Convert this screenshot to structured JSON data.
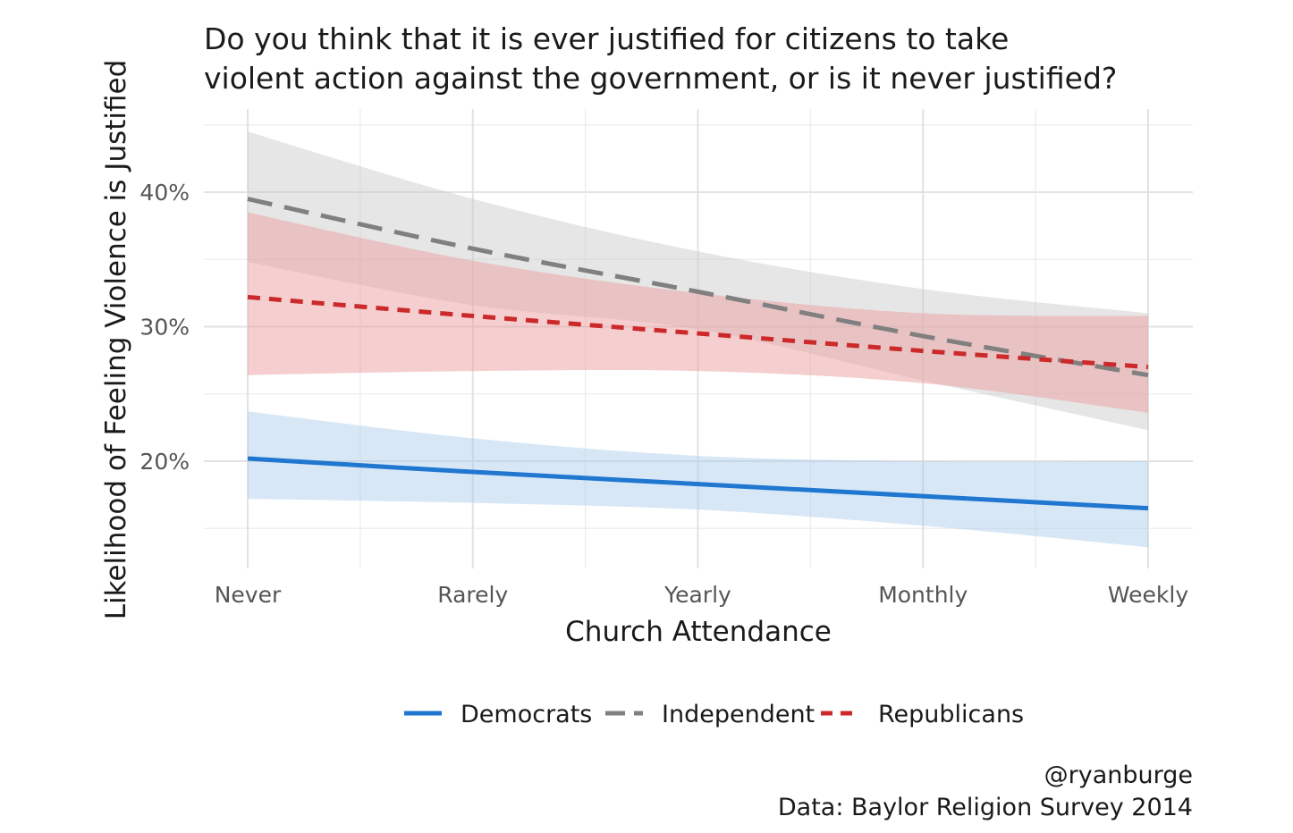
{
  "title_lines": [
    "Do you think that it is ever justified for citizens to take",
    "violent action against the government, or is it never justified?"
  ],
  "caption": {
    "handle": "@ryanburge",
    "source": "Data: Baylor Religion Survey 2014"
  },
  "chart_data": {
    "type": "line",
    "title": "Do you think that it is ever justified for citizens to take violent action against the government, or is it never justified?",
    "xlabel": "Church Attendance",
    "ylabel": "Likelihood of Feeling Violence is Justified",
    "categories": [
      "Never",
      "Rarely",
      "Yearly",
      "Monthly",
      "Weekly"
    ],
    "ylim": [
      13,
      46
    ],
    "yticks": [
      20,
      30,
      40
    ],
    "ytick_labels": [
      "20%",
      "30%",
      "40%"
    ],
    "grid": true,
    "legend_position": "bottom",
    "series": [
      {
        "name": "Democrats",
        "color": "#1f77d0",
        "band_color": "#a9c9ec",
        "linestyle": "solid",
        "values": [
          20.2,
          19.2,
          18.3,
          17.4,
          16.5
        ],
        "lower": [
          17.2,
          16.9,
          16.4,
          15.2,
          13.6
        ],
        "upper": [
          23.7,
          21.7,
          20.4,
          20.0,
          20.0
        ]
      },
      {
        "name": "Independent",
        "color": "#808080",
        "band_color": "#c8c8c8",
        "linestyle": "longdash",
        "values": [
          39.5,
          35.8,
          32.6,
          29.3,
          26.4
        ],
        "lower": [
          34.8,
          31.6,
          29.8,
          26.0,
          22.3
        ],
        "upper": [
          44.5,
          39.5,
          35.6,
          32.8,
          31.0
        ]
      },
      {
        "name": "Republicans",
        "color": "#cc2a2a",
        "band_color": "#eca0a0",
        "linestyle": "dashed",
        "values": [
          32.2,
          30.8,
          29.5,
          28.2,
          27.0
        ],
        "lower": [
          26.4,
          26.7,
          26.7,
          25.8,
          23.6
        ],
        "upper": [
          38.5,
          34.9,
          32.5,
          31.0,
          30.8
        ]
      }
    ]
  }
}
